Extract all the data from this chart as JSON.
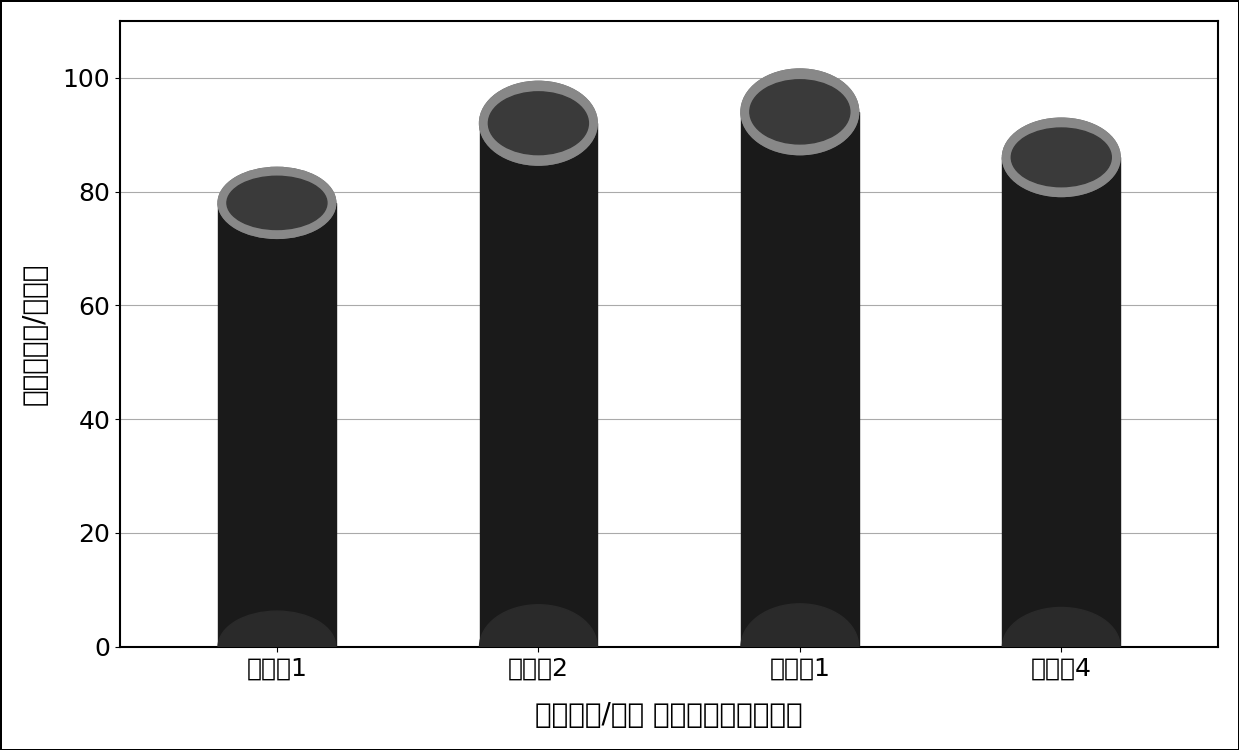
{
  "categories": [
    "对比例1",
    "实施例2",
    "实施例1",
    "实施例4"
  ],
  "values": [
    78,
    92,
    94,
    86
  ],
  "bar_color_main": "#1a1a1a",
  "bar_color_top": "#555555",
  "bar_color_side": "#0a0a0a",
  "ylabel": "法拉第效率/百分之",
  "xlabel": "电极电势/伏特 相对于饱和甘汞电极",
  "ylim": [
    0,
    110
  ],
  "yticks": [
    0,
    20,
    40,
    60,
    80,
    100
  ],
  "background_color": "#ffffff",
  "border_color": "#000000",
  "title_fontsize": 18,
  "label_fontsize": 20,
  "tick_fontsize": 18,
  "bar_width": 0.45,
  "cylinder_ratio": 0.08
}
